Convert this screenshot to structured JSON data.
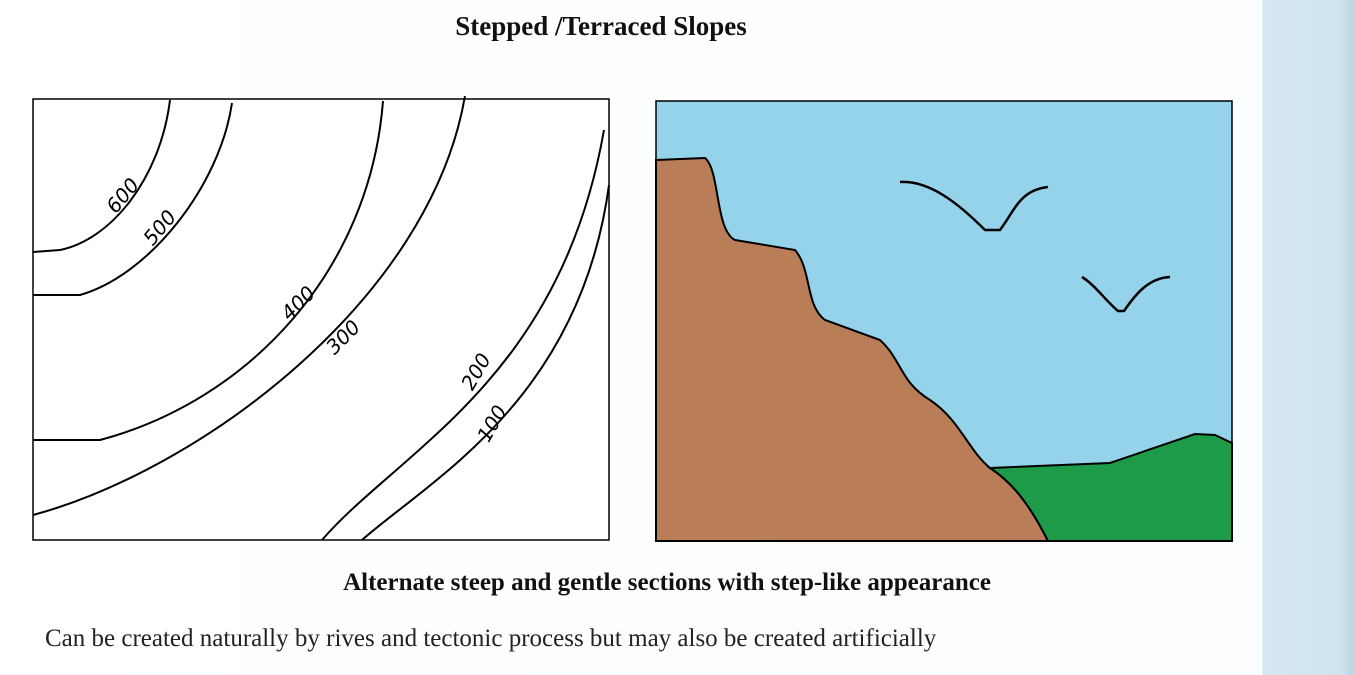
{
  "slide": {
    "title": "Stepped /Terraced Slopes",
    "contour_labels": [
      "600",
      "500",
      "400",
      "300",
      "200",
      "100"
    ],
    "caption": "Alternate steep and gentle sections with step-like appearance",
    "note": "Can be created naturally by rives and tectonic process but may also be created artificially"
  }
}
